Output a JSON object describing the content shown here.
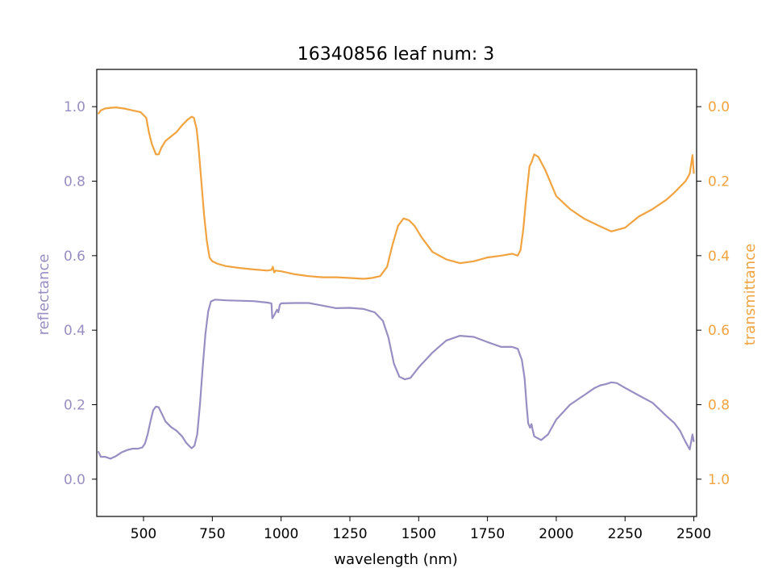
{
  "chart_data": {
    "type": "line",
    "title": "16340856 leaf num: 3",
    "xlabel": "wavelength (nm)",
    "ylabel_left": "reflectance",
    "ylabel_right": "transmittance",
    "xlim": [
      330,
      2510
    ],
    "ylim_left": [
      -0.1,
      1.1
    ],
    "ylim_right": [
      1.1,
      -0.1
    ],
    "right_axis_inverted": true,
    "grid": false,
    "x_ticks": [
      500,
      750,
      1000,
      1250,
      1500,
      1750,
      2000,
      2250,
      2500
    ],
    "y_ticks_left": [
      "0.0",
      "0.2",
      "0.4",
      "0.6",
      "0.8",
      "1.0"
    ],
    "y_ticks_right": [
      "0.0",
      "0.2",
      "0.4",
      "0.6",
      "0.8",
      "1.0"
    ],
    "colors": {
      "reflectance": "#998ec3",
      "transmittance": "#f1a340",
      "axis": "#000000"
    },
    "series": [
      {
        "name": "reflectance",
        "axis": "left",
        "color": "#998ec3",
        "points": [
          [
            335,
            0.075
          ],
          [
            345,
            0.06
          ],
          [
            360,
            0.06
          ],
          [
            380,
            0.055
          ],
          [
            400,
            0.062
          ],
          [
            420,
            0.072
          ],
          [
            440,
            0.078
          ],
          [
            460,
            0.082
          ],
          [
            480,
            0.082
          ],
          [
            495,
            0.085
          ],
          [
            505,
            0.095
          ],
          [
            515,
            0.12
          ],
          [
            525,
            0.155
          ],
          [
            535,
            0.185
          ],
          [
            545,
            0.195
          ],
          [
            555,
            0.193
          ],
          [
            565,
            0.178
          ],
          [
            580,
            0.155
          ],
          [
            600,
            0.14
          ],
          [
            620,
            0.13
          ],
          [
            640,
            0.115
          ],
          [
            655,
            0.098
          ],
          [
            665,
            0.09
          ],
          [
            675,
            0.083
          ],
          [
            685,
            0.09
          ],
          [
            695,
            0.12
          ],
          [
            705,
            0.2
          ],
          [
            715,
            0.3
          ],
          [
            725,
            0.39
          ],
          [
            735,
            0.45
          ],
          [
            745,
            0.477
          ],
          [
            760,
            0.482
          ],
          [
            800,
            0.48
          ],
          [
            850,
            0.479
          ],
          [
            900,
            0.478
          ],
          [
            950,
            0.474
          ],
          [
            965,
            0.472
          ],
          [
            968,
            0.432
          ],
          [
            975,
            0.44
          ],
          [
            985,
            0.455
          ],
          [
            990,
            0.448
          ],
          [
            995,
            0.468
          ],
          [
            1000,
            0.472
          ],
          [
            1050,
            0.473
          ],
          [
            1100,
            0.473
          ],
          [
            1150,
            0.466
          ],
          [
            1200,
            0.459
          ],
          [
            1250,
            0.46
          ],
          [
            1300,
            0.457
          ],
          [
            1340,
            0.448
          ],
          [
            1370,
            0.425
          ],
          [
            1390,
            0.38
          ],
          [
            1410,
            0.31
          ],
          [
            1430,
            0.275
          ],
          [
            1450,
            0.268
          ],
          [
            1470,
            0.272
          ],
          [
            1500,
            0.3
          ],
          [
            1550,
            0.34
          ],
          [
            1600,
            0.372
          ],
          [
            1650,
            0.385
          ],
          [
            1700,
            0.382
          ],
          [
            1750,
            0.368
          ],
          [
            1800,
            0.355
          ],
          [
            1840,
            0.355
          ],
          [
            1860,
            0.35
          ],
          [
            1875,
            0.32
          ],
          [
            1885,
            0.27
          ],
          [
            1892,
            0.2
          ],
          [
            1898,
            0.15
          ],
          [
            1905,
            0.138
          ],
          [
            1910,
            0.148
          ],
          [
            1915,
            0.13
          ],
          [
            1920,
            0.115
          ],
          [
            1945,
            0.105
          ],
          [
            1970,
            0.12
          ],
          [
            2000,
            0.16
          ],
          [
            2050,
            0.2
          ],
          [
            2100,
            0.225
          ],
          [
            2140,
            0.245
          ],
          [
            2160,
            0.252
          ],
          [
            2180,
            0.255
          ],
          [
            2200,
            0.26
          ],
          [
            2220,
            0.258
          ],
          [
            2250,
            0.245
          ],
          [
            2300,
            0.225
          ],
          [
            2350,
            0.205
          ],
          [
            2400,
            0.17
          ],
          [
            2430,
            0.15
          ],
          [
            2450,
            0.13
          ],
          [
            2470,
            0.1
          ],
          [
            2485,
            0.08
          ],
          [
            2495,
            0.12
          ],
          [
            2500,
            0.1
          ]
        ]
      },
      {
        "name": "transmittance",
        "axis": "right",
        "color": "#f1a340",
        "points": [
          [
            335,
            0.02
          ],
          [
            345,
            0.01
          ],
          [
            360,
            0.005
          ],
          [
            380,
            0.003
          ],
          [
            400,
            0.002
          ],
          [
            430,
            0.005
          ],
          [
            460,
            0.01
          ],
          [
            490,
            0.015
          ],
          [
            510,
            0.03
          ],
          [
            520,
            0.07
          ],
          [
            530,
            0.1
          ],
          [
            545,
            0.128
          ],
          [
            555,
            0.128
          ],
          [
            565,
            0.11
          ],
          [
            580,
            0.092
          ],
          [
            600,
            0.08
          ],
          [
            620,
            0.068
          ],
          [
            640,
            0.05
          ],
          [
            660,
            0.035
          ],
          [
            675,
            0.027
          ],
          [
            683,
            0.03
          ],
          [
            693,
            0.06
          ],
          [
            700,
            0.11
          ],
          [
            710,
            0.2
          ],
          [
            720,
            0.29
          ],
          [
            730,
            0.36
          ],
          [
            740,
            0.405
          ],
          [
            750,
            0.415
          ],
          [
            770,
            0.422
          ],
          [
            800,
            0.428
          ],
          [
            850,
            0.433
          ],
          [
            900,
            0.437
          ],
          [
            950,
            0.44
          ],
          [
            965,
            0.438
          ],
          [
            970,
            0.43
          ],
          [
            975,
            0.445
          ],
          [
            980,
            0.44
          ],
          [
            1000,
            0.442
          ],
          [
            1050,
            0.45
          ],
          [
            1100,
            0.455
          ],
          [
            1150,
            0.458
          ],
          [
            1200,
            0.458
          ],
          [
            1250,
            0.46
          ],
          [
            1300,
            0.462
          ],
          [
            1330,
            0.46
          ],
          [
            1360,
            0.455
          ],
          [
            1385,
            0.43
          ],
          [
            1405,
            0.37
          ],
          [
            1425,
            0.32
          ],
          [
            1445,
            0.3
          ],
          [
            1465,
            0.305
          ],
          [
            1485,
            0.32
          ],
          [
            1510,
            0.35
          ],
          [
            1550,
            0.39
          ],
          [
            1600,
            0.41
          ],
          [
            1650,
            0.42
          ],
          [
            1700,
            0.415
          ],
          [
            1750,
            0.405
          ],
          [
            1800,
            0.4
          ],
          [
            1840,
            0.395
          ],
          [
            1860,
            0.4
          ],
          [
            1870,
            0.385
          ],
          [
            1880,
            0.33
          ],
          [
            1890,
            0.25
          ],
          [
            1897,
            0.2
          ],
          [
            1903,
            0.16
          ],
          [
            1910,
            0.15
          ],
          [
            1920,
            0.128
          ],
          [
            1935,
            0.135
          ],
          [
            1960,
            0.17
          ],
          [
            2000,
            0.24
          ],
          [
            2050,
            0.275
          ],
          [
            2100,
            0.3
          ],
          [
            2150,
            0.318
          ],
          [
            2200,
            0.335
          ],
          [
            2250,
            0.325
          ],
          [
            2300,
            0.295
          ],
          [
            2350,
            0.275
          ],
          [
            2400,
            0.25
          ],
          [
            2430,
            0.23
          ],
          [
            2450,
            0.215
          ],
          [
            2470,
            0.2
          ],
          [
            2485,
            0.18
          ],
          [
            2495,
            0.13
          ],
          [
            2500,
            0.18
          ]
        ]
      }
    ]
  }
}
